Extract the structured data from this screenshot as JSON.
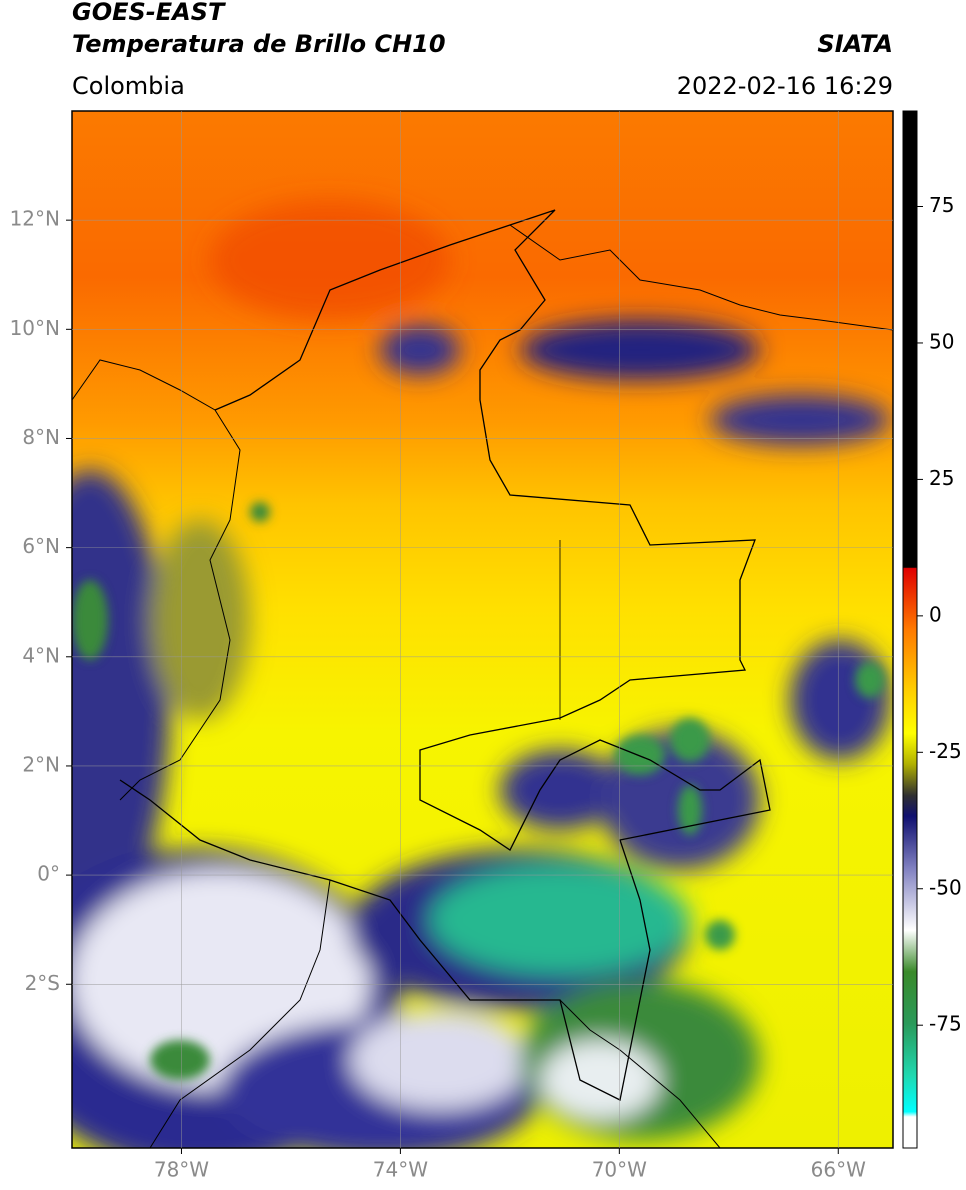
{
  "header": {
    "title": "GOES-EAST",
    "subtitle": "Temperatura de Brillo CH10",
    "source": "SIATA",
    "region": "Colombia",
    "timestamp": "2022-02-16 16:29"
  },
  "map": {
    "xlim": [
      -80,
      -65
    ],
    "ylim": [
      -5,
      14
    ],
    "grid": true,
    "xticks": [
      {
        "value": -78,
        "label": "78°W"
      },
      {
        "value": -74,
        "label": "74°W"
      },
      {
        "value": -70,
        "label": "70°W"
      },
      {
        "value": -66,
        "label": "66°W"
      }
    ],
    "yticks": [
      {
        "value": 12,
        "label": "12°N"
      },
      {
        "value": 10,
        "label": "10°N"
      },
      {
        "value": 8,
        "label": "8°N"
      },
      {
        "value": 6,
        "label": "6°N"
      },
      {
        "value": 4,
        "label": "4°N"
      },
      {
        "value": 2,
        "label": "2°N"
      },
      {
        "value": 0,
        "label": "0°"
      },
      {
        "value": -2,
        "label": "2°S"
      }
    ]
  },
  "colorbar": {
    "lim": [
      -97.5,
      92.5
    ],
    "ticks": [
      75,
      50,
      25,
      0,
      -25,
      -50,
      -75
    ]
  }
}
